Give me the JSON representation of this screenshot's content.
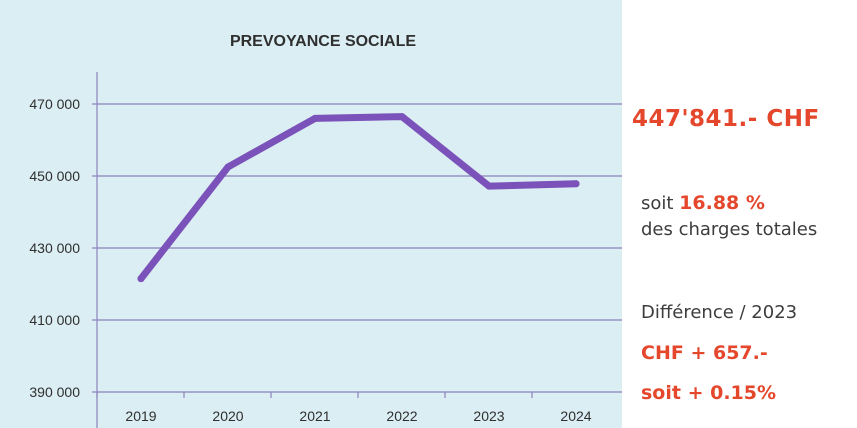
{
  "chart_data": {
    "type": "line",
    "title": "PREVOYANCE SOCIALE",
    "xlabel": "",
    "ylabel": "",
    "categories": [
      "2019",
      "2020",
      "2021",
      "2022",
      "2023",
      "2024"
    ],
    "series": [
      {
        "values": [
          421500,
          452500,
          466000,
          466500,
          447200,
          447841
        ]
      }
    ],
    "ylim": [
      390000,
      470000
    ],
    "yticks": [
      390000,
      410000,
      430000,
      450000,
      470000
    ],
    "ytick_labels": [
      "390 000",
      "410 000",
      "430 000",
      "450 000",
      "470 000"
    ],
    "grid": "horizontal",
    "colors": {
      "line": "#7b52b9",
      "grid": "#8b83b8",
      "panel": "#dbeef3",
      "text": "#2f2f2f"
    }
  },
  "summary": {
    "headline": "447'841.-  CHF",
    "share_prefix": "soit ",
    "share_value": "16.88 %",
    "share_suffix": "des charges totales",
    "diff_label": "Différence / 2023",
    "diff_amount": "CHF + 657.-",
    "diff_percent": "soit  + 0.15%",
    "accent_color": "#e4472b"
  }
}
